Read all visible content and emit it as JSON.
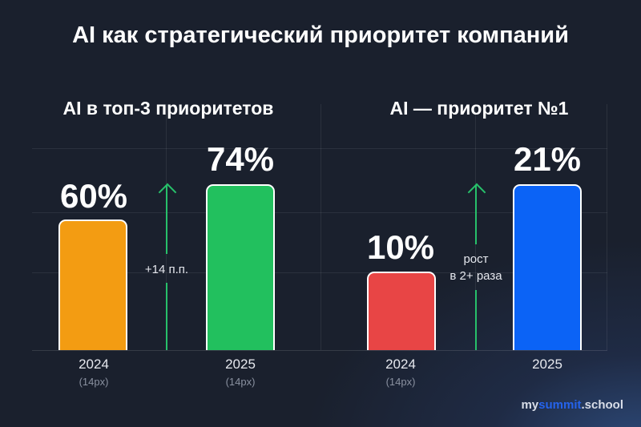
{
  "title": "AI как стратегический приоритет компаний",
  "brand": {
    "prefix": "my",
    "accent": "summit",
    "suffix": ".school"
  },
  "chart_data": [
    {
      "type": "bar",
      "title": "AI в топ-3 приоритетов",
      "categories": [
        "2024",
        "2025"
      ],
      "category_notes": [
        "(14px)",
        "(14px)"
      ],
      "values": [
        60,
        74
      ],
      "value_labels": [
        "60%",
        "74%"
      ],
      "colors": [
        "#f39c12",
        "#22c05e"
      ],
      "annotation": "+14 п.п.",
      "grid": true
    },
    {
      "type": "bar",
      "title": "AI — приоритет №1",
      "categories": [
        "2024",
        "2025"
      ],
      "category_notes": [
        "(14px)",
        ""
      ],
      "values": [
        10,
        21
      ],
      "value_labels": [
        "10%",
        "21%"
      ],
      "colors": [
        "#e84545",
        "#0b63f6"
      ],
      "annotation": [
        "рост",
        "в 2+ раза"
      ],
      "grid": true
    }
  ]
}
